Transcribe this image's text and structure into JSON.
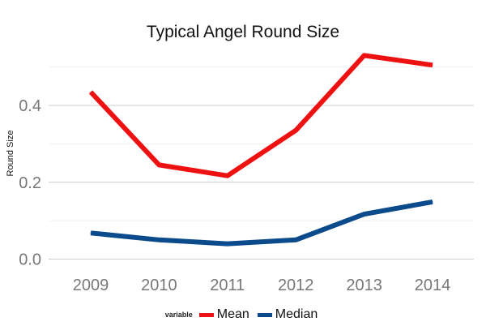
{
  "chart_data": {
    "type": "line",
    "title": "Typical Angel Round Size",
    "xlabel": "",
    "ylabel": "Round Size",
    "categories": [
      "2009",
      "2010",
      "2011",
      "2012",
      "2013",
      "2014"
    ],
    "y_ticks": [
      0.0,
      0.2,
      0.4
    ],
    "y_tick_labels": [
      "0.0",
      "0.2",
      "0.4"
    ],
    "ylim": [
      -0.01,
      0.56
    ],
    "grid": true,
    "legend": {
      "title": "variable",
      "position": "bottom"
    },
    "series": [
      {
        "name": "Mean",
        "color": "#ee1111",
        "values": [
          0.435,
          0.245,
          0.217,
          0.335,
          0.53,
          0.505
        ]
      },
      {
        "name": "Median",
        "color": "#0b4a8b",
        "values": [
          0.068,
          0.05,
          0.04,
          0.05,
          0.117,
          0.149
        ]
      }
    ]
  }
}
